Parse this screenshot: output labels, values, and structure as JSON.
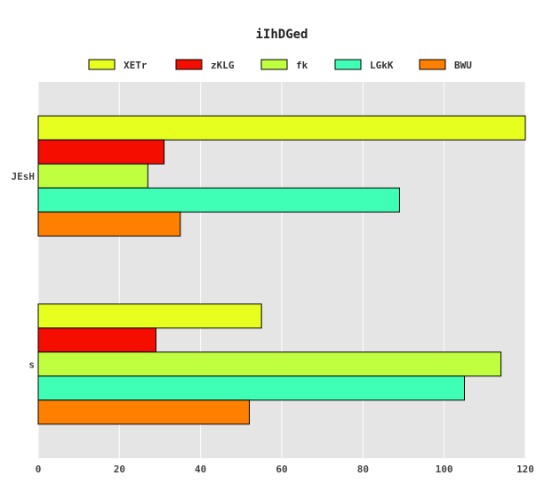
{
  "chart_data": {
    "type": "bar",
    "orientation": "horizontal",
    "title": "iIhDGed",
    "xlabel": "",
    "ylabel": "",
    "xlim": [
      0,
      120
    ],
    "xticks": [
      0,
      20,
      40,
      60,
      80,
      100,
      120
    ],
    "grid": true,
    "legend_position": "top",
    "categories": [
      "JEsH",
      "s"
    ],
    "series": [
      {
        "name": "XETr",
        "color": "#e6ff1f",
        "values": [
          120,
          55
        ]
      },
      {
        "name": "zKLG",
        "color": "#f50d00",
        "values": [
          31,
          29
        ]
      },
      {
        "name": "fk",
        "color": "#bfff3f",
        "values": [
          27,
          114
        ]
      },
      {
        "name": "LGkK",
        "color": "#3fffb7",
        "values": [
          89,
          105
        ]
      },
      {
        "name": "BWU",
        "color": "#ff7f00",
        "values": [
          35,
          52
        ]
      }
    ]
  }
}
